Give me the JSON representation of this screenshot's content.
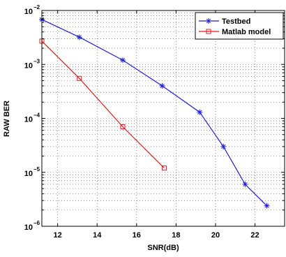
{
  "chart_data": {
    "type": "line",
    "title": "",
    "xlabel": "SNR(dB)",
    "ylabel": "RAW BER",
    "xlim": [
      11.2,
      23.5
    ],
    "ylim": [
      1e-06,
      0.01
    ],
    "yscale": "log",
    "grid": true,
    "legend_position": "top-right",
    "x_ticks": [
      12,
      14,
      16,
      18,
      20,
      22
    ],
    "x_tick_labels": [
      "12",
      "14",
      "16",
      "18",
      "20",
      "22"
    ],
    "y_ticks": [
      1e-06,
      1e-05,
      0.0001,
      0.001,
      0.01
    ],
    "y_tick_labels": [
      {
        "base": "10",
        "exp": "−6"
      },
      {
        "base": "10",
        "exp": "−5"
      },
      {
        "base": "10",
        "exp": "−4"
      },
      {
        "base": "10",
        "exp": "−3"
      },
      {
        "base": "10",
        "exp": "−2"
      }
    ],
    "series": [
      {
        "name": "Testbed",
        "color": "#1f1fd6",
        "marker": "asterisk",
        "x": [
          11.2,
          13.1,
          15.3,
          17.3,
          19.2,
          20.4,
          21.5,
          22.6
        ],
        "y": [
          0.0068,
          0.0032,
          0.0012,
          0.0004,
          0.00013,
          3e-05,
          6e-06,
          2.4e-06
        ]
      },
      {
        "name": "Matlab model",
        "color": "#e01b1b",
        "marker": "square",
        "x": [
          11.2,
          13.1,
          15.3,
          17.4
        ],
        "y": [
          0.0027,
          0.00055,
          7e-05,
          1.2e-05
        ]
      }
    ]
  }
}
